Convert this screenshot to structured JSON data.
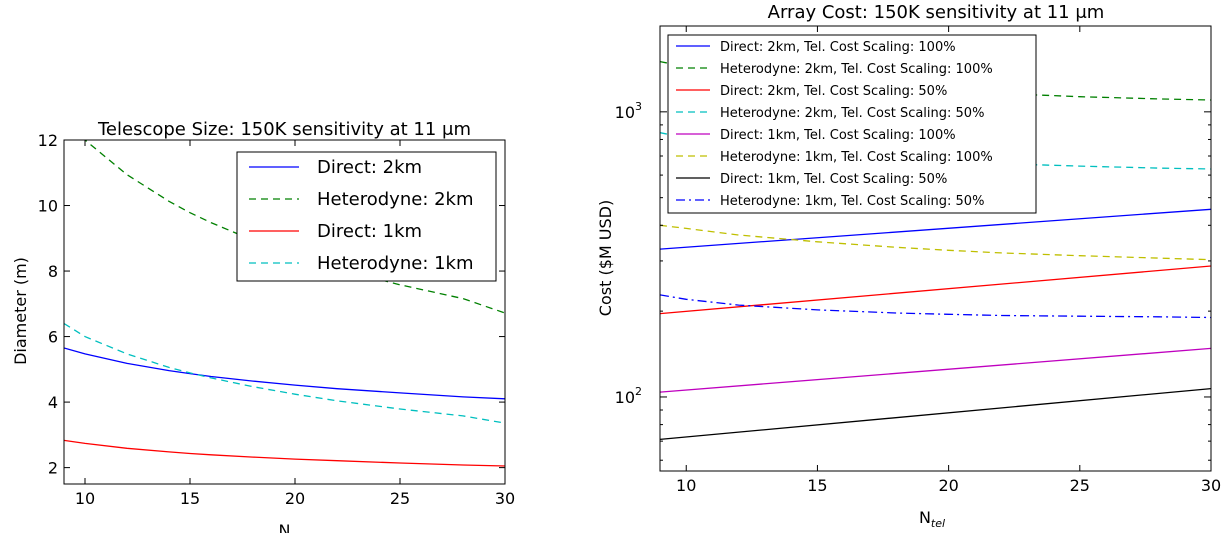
{
  "chart_data": [
    {
      "type": "line",
      "title": "Telescope Size: 150K sensitivity at 11 μm",
      "xlabel": "N",
      "ylabel": "Diameter (m)",
      "xlim": [
        9,
        30
      ],
      "ylim": [
        1.5,
        12
      ],
      "yscale": "linear",
      "x_ticks": [
        "10",
        "15",
        "20",
        "25",
        "30"
      ],
      "y_ticks": [
        "2",
        "4",
        "6",
        "8",
        "10",
        "12"
      ],
      "legend_position": "upper right",
      "grid": false,
      "series": [
        {
          "name": "Direct: 2km",
          "color": "#0000ff",
          "style": "solid",
          "x": [
            9,
            10,
            12,
            14,
            15,
            16,
            18,
            20,
            22,
            25,
            28,
            30
          ],
          "values": [
            5.65,
            5.47,
            5.18,
            4.96,
            4.87,
            4.78,
            4.64,
            4.52,
            4.41,
            4.28,
            4.16,
            4.1
          ]
        },
        {
          "name": "Heterodyne: 2km",
          "color": "#008000",
          "style": "dashed",
          "x": [
            9,
            10,
            12,
            14,
            15,
            16,
            18,
            20,
            22,
            25,
            28,
            30
          ],
          "values": [
            12.6,
            12.0,
            10.94,
            10.13,
            9.78,
            9.48,
            8.94,
            8.48,
            8.08,
            7.58,
            7.16,
            6.72
          ]
        },
        {
          "name": "Direct: 1km",
          "color": "#ff0000",
          "style": "solid",
          "x": [
            9,
            10,
            12,
            14,
            15,
            16,
            18,
            20,
            22,
            25,
            28,
            30
          ],
          "values": [
            2.83,
            2.74,
            2.59,
            2.48,
            2.43,
            2.39,
            2.32,
            2.26,
            2.21,
            2.14,
            2.08,
            2.05
          ]
        },
        {
          "name": "Heterodyne: 1km",
          "color": "#00bfbf",
          "style": "dashed",
          "x": [
            9,
            10,
            12,
            14,
            15,
            16,
            18,
            20,
            22,
            25,
            28,
            30
          ],
          "values": [
            6.4,
            6.0,
            5.47,
            5.06,
            4.89,
            4.74,
            4.47,
            4.24,
            4.04,
            3.79,
            3.58,
            3.36
          ]
        }
      ]
    },
    {
      "type": "line",
      "title": "Array Cost: 150K sensitivity at 11 μm",
      "xlabel": "N_tel",
      "xlabel_main": "N",
      "xlabel_sub": "tel",
      "ylabel": "Cost ($M USD)",
      "xlim": [
        9,
        30
      ],
      "ylim": [
        55,
        2000
      ],
      "yscale": "log",
      "x_ticks": [
        "10",
        "15",
        "20",
        "25",
        "30"
      ],
      "y_ticks": [
        {
          "base": "10",
          "exp": "2",
          "value": 100
        },
        {
          "base": "10",
          "exp": "3",
          "value": 1000
        }
      ],
      "legend_position": "upper left",
      "grid": false,
      "series": [
        {
          "name": "Direct: 2km, Tel. Cost Scaling: 100%",
          "color": "#0000ff",
          "style": "solid",
          "x": [
            9,
            30
          ],
          "values": [
            330,
            455
          ]
        },
        {
          "name": "Heterodyne: 2km, Tel. Cost Scaling: 100%",
          "color": "#008000",
          "style": "dashed",
          "x": [
            9,
            10,
            12,
            15,
            18,
            20,
            22,
            25,
            28,
            30
          ],
          "values": [
            1500,
            1440,
            1350,
            1270,
            1210,
            1180,
            1160,
            1130,
            1110,
            1100
          ]
        },
        {
          "name": "Direct: 2km, Tel. Cost Scaling:  50%",
          "color": "#ff0000",
          "style": "solid",
          "x": [
            9,
            30
          ],
          "values": [
            196,
            288
          ]
        },
        {
          "name": "Heterodyne: 2km, Tel. Cost Scaling:  50%",
          "color": "#00bfbf",
          "style": "dashed",
          "x": [
            9,
            10,
            12,
            15,
            18,
            20,
            22,
            25,
            28,
            30
          ],
          "values": [
            845,
            810,
            760,
            715,
            685,
            670,
            658,
            645,
            635,
            630
          ]
        },
        {
          "name": "Direct: 1km, Tel. Cost Scaling: 100%",
          "color": "#bf00bf",
          "style": "solid",
          "x": [
            9,
            30
          ],
          "values": [
            104,
            148
          ]
        },
        {
          "name": "Heterodyne: 1km, Tel. Cost Scaling: 100%",
          "color": "#bfbf00",
          "style": "dashed",
          "x": [
            9,
            10,
            12,
            15,
            18,
            20,
            22,
            25,
            28,
            30
          ],
          "values": [
            400,
            390,
            370,
            350,
            335,
            327,
            320,
            313,
            307,
            303
          ]
        },
        {
          "name": "Direct: 1km, Tel. Cost Scaling:  50%",
          "color": "#000000",
          "style": "solid",
          "x": [
            9,
            30
          ],
          "values": [
            71,
            107
          ]
        },
        {
          "name": "Heterodyne: 1km, Tel. Cost Scaling:  50%",
          "color": "#0000ff",
          "style": "dashdot",
          "x": [
            9,
            10,
            12,
            15,
            18,
            20,
            22,
            25,
            28,
            30
          ],
          "values": [
            228,
            220,
            210,
            202,
            197,
            195,
            193,
            192,
            191,
            190
          ]
        }
      ]
    }
  ]
}
